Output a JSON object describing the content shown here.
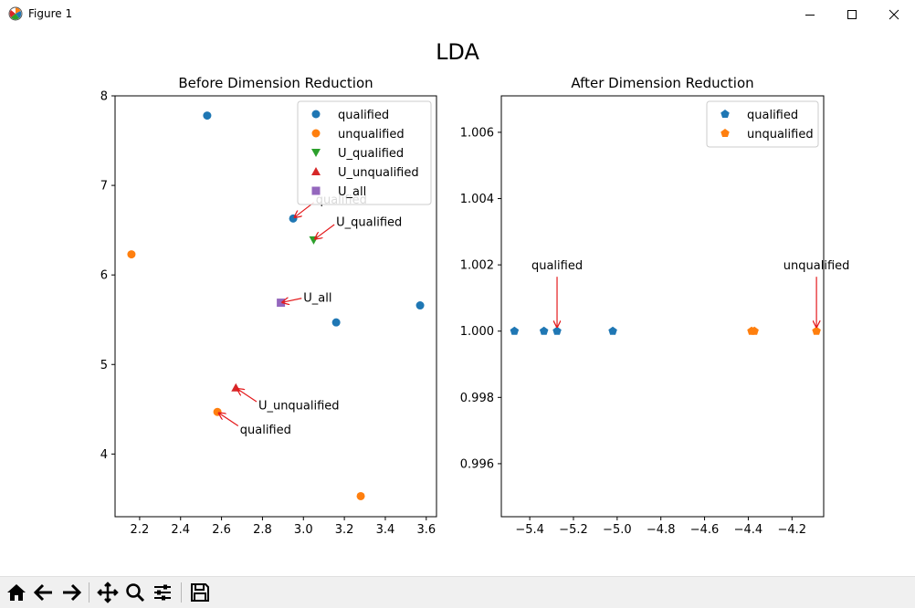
{
  "window": {
    "title": "Figure 1",
    "icons": {
      "app": "matplotlib-icon",
      "minimize": "minimize-icon",
      "maximize": "maximize-icon",
      "close": "close-icon"
    }
  },
  "figure": {
    "suptitle": "LDA"
  },
  "toolbar": {
    "buttons": [
      "home-icon",
      "back-arrow-icon",
      "forward-arrow-icon",
      "pan-icon",
      "zoom-icon",
      "configure-subplots-icon",
      "save-icon"
    ]
  },
  "colors": {
    "blue": "#1f77b4",
    "orange": "#ff7f0e",
    "green": "#2ca02c",
    "red": "#d62728",
    "purple": "#9467bd",
    "arrow": "#e41a1c"
  },
  "chart_data": [
    {
      "type": "scatter",
      "title": "Before Dimension Reduction",
      "xlabel": "",
      "ylabel": "",
      "xlim": [
        2.08,
        3.65
      ],
      "ylim": [
        3.3,
        8.0
      ],
      "xticks": [
        "2.2",
        "2.4",
        "2.6",
        "2.8",
        "3.0",
        "3.2",
        "3.4",
        "3.6"
      ],
      "yticks": [
        "4",
        "5",
        "6",
        "7",
        "8"
      ],
      "legend": "top-right",
      "series": [
        {
          "name": "qualified",
          "marker": "circle",
          "color": "#1f77b4",
          "points": [
            [
              2.53,
              7.78
            ],
            [
              2.95,
              6.63
            ],
            [
              3.16,
              5.47
            ],
            [
              3.57,
              5.66
            ]
          ]
        },
        {
          "name": "unqualified",
          "marker": "circle",
          "color": "#ff7f0e",
          "points": [
            [
              2.16,
              6.23
            ],
            [
              2.58,
              4.47
            ],
            [
              3.28,
              3.53
            ]
          ]
        },
        {
          "name": "U_qualified",
          "marker": "triangle-down",
          "color": "#2ca02c",
          "points": [
            [
              3.05,
              6.39
            ]
          ]
        },
        {
          "name": "U_unqualified",
          "marker": "triangle-up",
          "color": "#d62728",
          "points": [
            [
              2.67,
              4.74
            ]
          ]
        },
        {
          "name": "U_all",
          "marker": "square",
          "color": "#9467bd",
          "points": [
            [
              2.89,
              5.69
            ]
          ]
        }
      ],
      "annotations": [
        {
          "text": "qualified",
          "xy": [
            2.95,
            6.63
          ],
          "xytext": [
            3.06,
            6.85
          ]
        },
        {
          "text": "U_qualified",
          "xy": [
            3.05,
            6.39
          ],
          "xytext": [
            3.16,
            6.6
          ]
        },
        {
          "text": "U_all",
          "xy": [
            2.89,
            5.69
          ],
          "xytext": [
            3.0,
            5.75
          ]
        },
        {
          "text": "U_unqualified",
          "xy": [
            2.67,
            4.74
          ],
          "xytext": [
            2.78,
            4.55
          ]
        },
        {
          "text": "qualified",
          "xy": [
            2.58,
            4.47
          ],
          "xytext": [
            2.69,
            4.28
          ]
        }
      ]
    },
    {
      "type": "scatter",
      "title": "After Dimension Reduction",
      "xlabel": "",
      "ylabel": "",
      "xlim": [
        -5.53,
        -4.055
      ],
      "ylim": [
        0.9944,
        1.0071
      ],
      "xticks": [
        "−5.4",
        "−5.2",
        "−5.0",
        "−4.8",
        "−4.6",
        "−4.4",
        "−4.2"
      ],
      "xtick_values": [
        -5.4,
        -5.2,
        -5.0,
        -4.8,
        -4.6,
        -4.4,
        -4.2
      ],
      "yticks": [
        "0.996",
        "0.998",
        "1.000",
        "1.002",
        "1.004",
        "1.006"
      ],
      "ytick_values": [
        0.996,
        0.998,
        1.0,
        1.002,
        1.004,
        1.006
      ],
      "legend": "top-right",
      "series": [
        {
          "name": "qualified",
          "marker": "pentagon",
          "color": "#1f77b4",
          "points": [
            [
              -5.47,
              1.0
            ],
            [
              -5.335,
              1.0
            ],
            [
              -5.275,
              1.0
            ],
            [
              -5.02,
              1.0
            ]
          ]
        },
        {
          "name": "unqualified",
          "marker": "pentagon",
          "color": "#ff7f0e",
          "points": [
            [
              -4.385,
              1.0
            ],
            [
              -4.372,
              1.0
            ],
            [
              -4.088,
              1.0
            ]
          ]
        }
      ],
      "annotations": [
        {
          "text": "qualified",
          "xy": [
            -5.275,
            1.0
          ],
          "xytext": [
            -5.275,
            1.002
          ]
        },
        {
          "text": "unqualified",
          "xy": [
            -4.088,
            1.0
          ],
          "xytext": [
            -4.088,
            1.002
          ]
        }
      ]
    }
  ]
}
